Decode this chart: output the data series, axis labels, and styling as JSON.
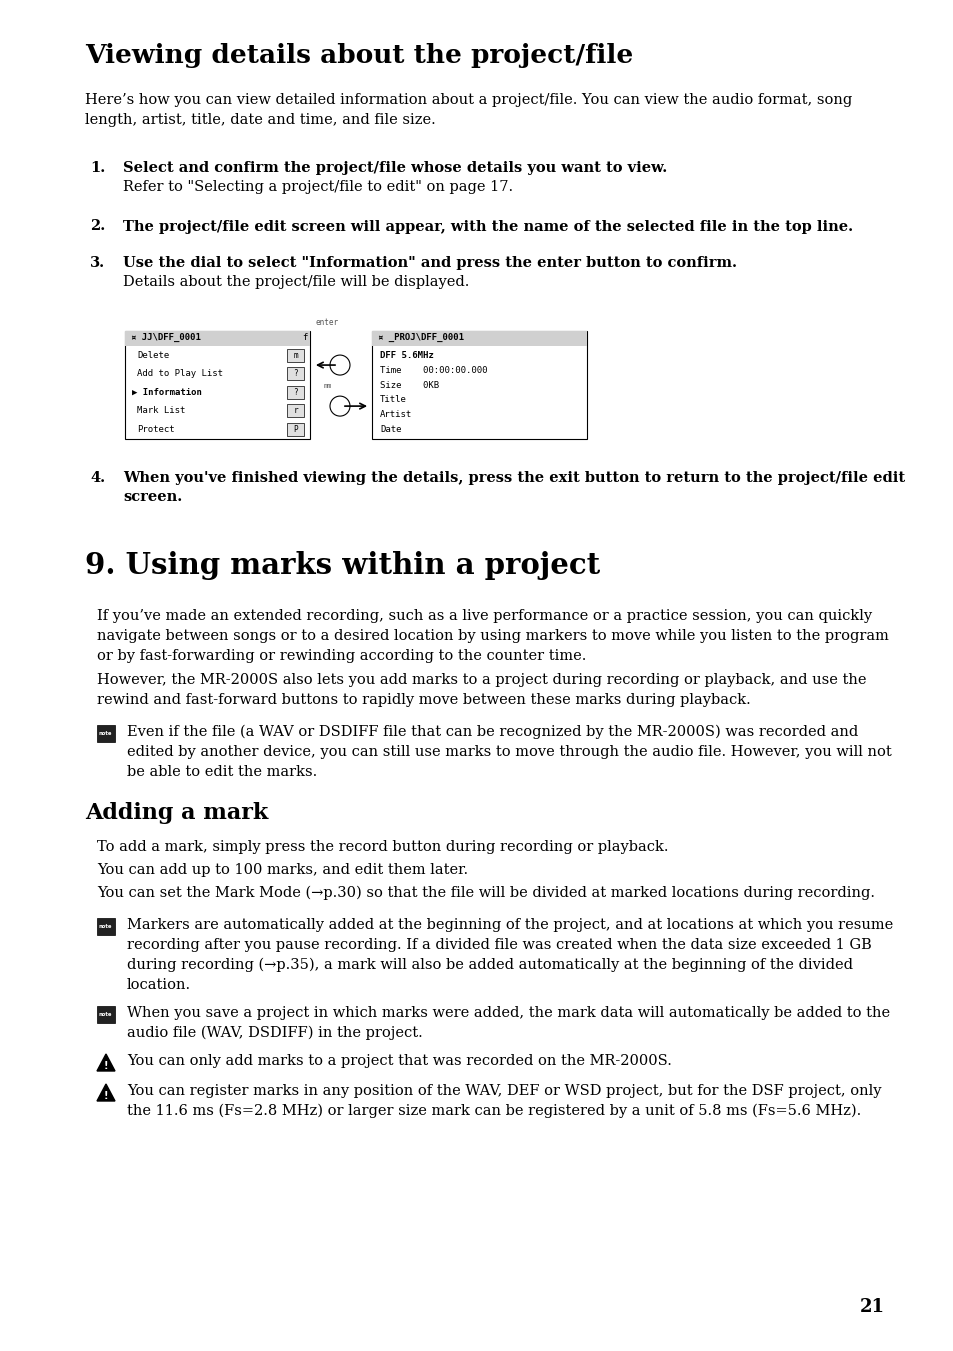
{
  "page_bg": "#ffffff",
  "page_number": "21",
  "section1_title": "Viewing details about the project/file",
  "section1_intro": "Here’s how you can view detailed information about a project/file. You can view the audio format, song\nlength, artist, title, date and time, and file size.",
  "steps": [
    {
      "num": "1.",
      "bold": "Select and confirm the project/file whose details you want to view.",
      "normal": "Refer to \"Selecting a project/file to edit\" on page 17."
    },
    {
      "num": "2.",
      "bold": "The project/file edit screen will appear, with the name of the selected file in the top line.",
      "normal": ""
    },
    {
      "num": "3.",
      "bold": "Use the dial to select \"Information\" and press the enter button to confirm.",
      "normal": "Details about the project/file will be displayed."
    }
  ],
  "step4_bold": "When you've finished viewing the details, press the exit button to return to the project/file edit\nscreen.",
  "section2_title": "9. Using marks within a project",
  "section2_para1": "If you’ve made an extended recording, such as a live performance or a practice session, you can quickly\nnavigate between songs or to a desired location by using markers to move while you listen to the program\nor by fast-forwarding or rewinding according to the counter time.",
  "section2_para2": "However, the MR-2000S also lets you add marks to a project during recording or playback, and use the\nrewind and fast-forward buttons to rapidly move between these marks during playback.",
  "note1": "Even if the file (a WAV or DSDIFF file that can be recognized by the MR-2000S) was recorded and\nedited by another device, you can still use marks to move through the audio file. However, you will not\nbe able to edit the marks.",
  "section3_title": "Adding a mark",
  "section3_para1": "To add a mark, simply press the record button during recording or playback.",
  "section3_para2": "You can add up to 100 marks, and edit them later.",
  "section3_para3": "You can set the Mark Mode (→p.30) so that the file will be divided at marked locations during recording.",
  "note2": "Markers are automatically added at the beginning of the project, and at locations at which you resume\nrecording after you pause recording. If a divided file was created when the data size exceeded 1 GB\nduring recording (→p.35), a mark will also be added automatically at the beginning of the divided\nlocation.",
  "note3": "When you save a project in which marks were added, the mark data will automatically be added to the\naudio file (WAV, DSDIFF) in the project.",
  "caution1": "You can only add marks to a project that was recorded on the MR-2000S.",
  "caution2": "You can register marks in any position of the WAV, DEF or WSD project, but for the DSF project, only\nthe 11.6 ms (Fs=2.8 MHz) or larger size mark can be registered by a unit of 5.8 ms (Fs=5.6 MHz).",
  "lbox_items": [
    "Delete",
    "Add to Play List",
    "Information",
    "Mark List",
    "Protect"
  ],
  "rbox_items": [
    [
      "DFF 5.6MHz",
      "",
      true
    ],
    [
      "Time",
      "00:00:00.000",
      false
    ],
    [
      "Size",
      "0KB",
      false
    ],
    [
      "Title",
      "",
      false
    ],
    [
      "Artist",
      "",
      false
    ],
    [
      "Date",
      "",
      false
    ]
  ]
}
